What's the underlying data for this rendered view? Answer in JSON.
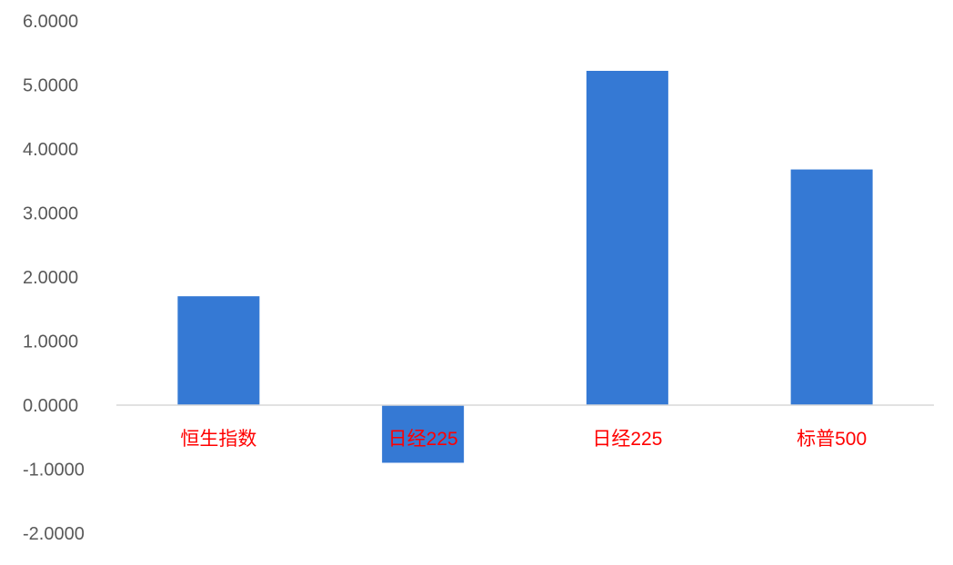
{
  "chart_data": {
    "type": "bar",
    "title": "",
    "xlabel": "",
    "ylabel": "",
    "categories": [
      "恒生指数",
      "日经225",
      "日经225",
      "标普500"
    ],
    "values": [
      1.7,
      -0.9,
      5.22,
      3.68
    ],
    "ylim": [
      -2,
      6
    ],
    "yticks": [
      6,
      5,
      4,
      3,
      2,
      1,
      0,
      -1,
      -2
    ],
    "ytick_labels": [
      "6.0000",
      "5.0000",
      "4.0000",
      "3.0000",
      "2.0000",
      "1.0000",
      "0.0000",
      "-1.0000",
      "-2.0000"
    ],
    "grid": false,
    "legend": "none",
    "colors": {
      "bar": "#3579D4",
      "category_label": "#FF0000",
      "tick_label": "#595959",
      "axis_line": "#D9D9D9"
    }
  }
}
